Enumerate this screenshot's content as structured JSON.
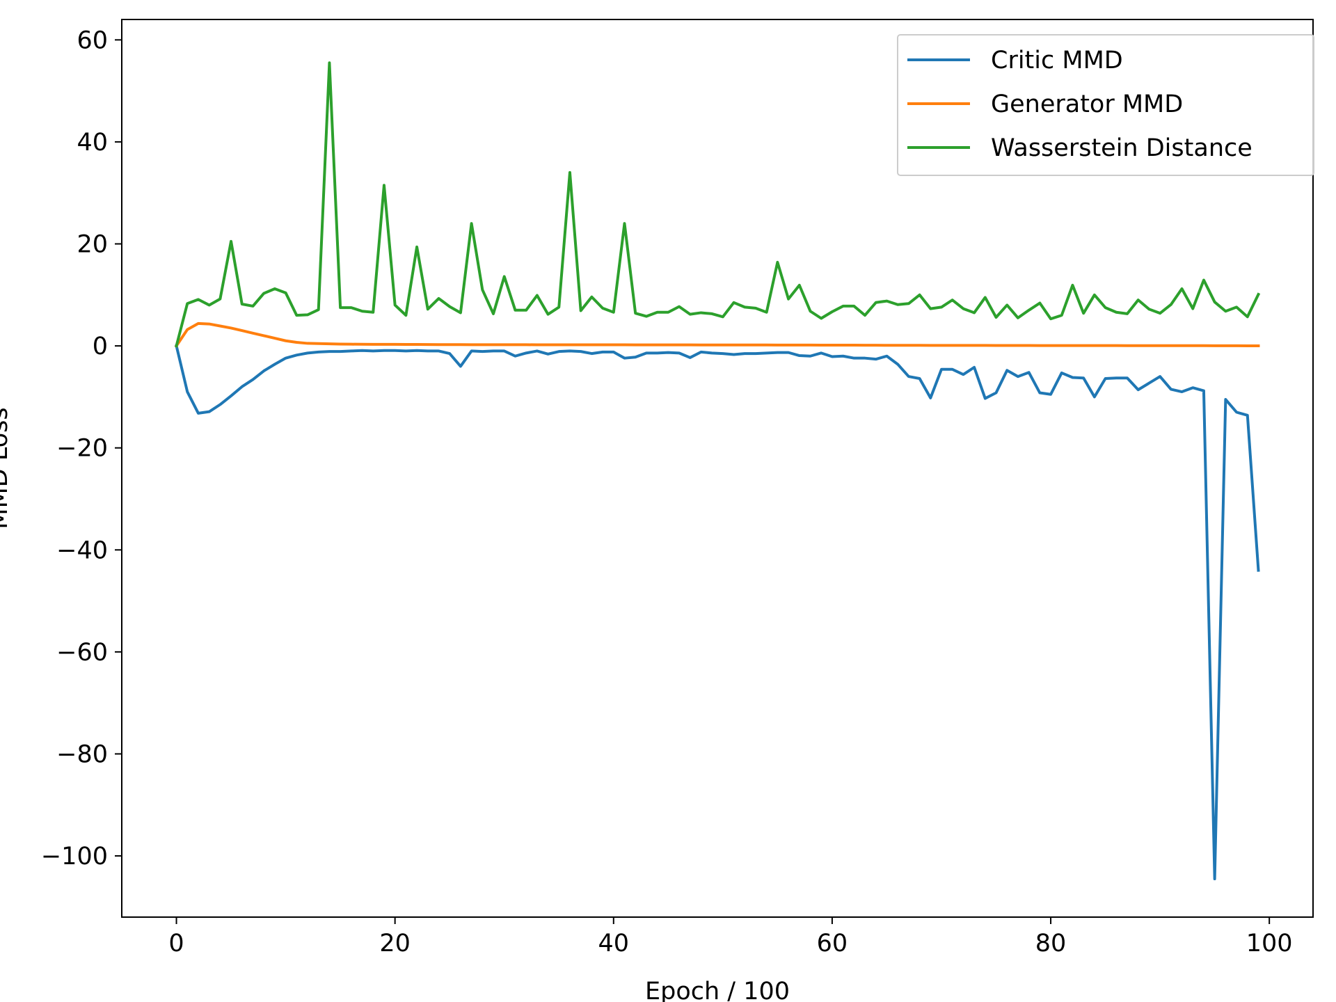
{
  "chart_data": {
    "type": "line",
    "title": "",
    "xlabel": "Epoch / 100",
    "ylabel": "MMD Loss",
    "xlim": [
      -5,
      104
    ],
    "ylim": [
      -112,
      64
    ],
    "xticks": [
      0,
      20,
      40,
      60,
      80,
      100
    ],
    "xtick_labels": [
      "0",
      "20",
      "40",
      "60",
      "80",
      "100"
    ],
    "yticks": [
      60,
      40,
      20,
      0,
      -20,
      -40,
      -60,
      -80,
      -100
    ],
    "ytick_labels": [
      "60",
      "40",
      "20",
      "0",
      "−20",
      "−40",
      "−60",
      "−80",
      "−100"
    ],
    "grid": false,
    "legend_position": "top-right",
    "x": [
      0,
      1,
      2,
      3,
      4,
      5,
      6,
      7,
      8,
      9,
      10,
      11,
      12,
      13,
      14,
      15,
      16,
      17,
      18,
      19,
      20,
      21,
      22,
      23,
      24,
      25,
      26,
      27,
      28,
      29,
      30,
      31,
      32,
      33,
      34,
      35,
      36,
      37,
      38,
      39,
      40,
      41,
      42,
      43,
      44,
      45,
      46,
      47,
      48,
      49,
      50,
      51,
      52,
      53,
      54,
      55,
      56,
      57,
      58,
      59,
      60,
      61,
      62,
      63,
      64,
      65,
      66,
      67,
      68,
      69,
      70,
      71,
      72,
      73,
      74,
      75,
      76,
      77,
      78,
      79,
      80,
      81,
      82,
      83,
      84,
      85,
      86,
      87,
      88,
      89,
      90,
      91,
      92,
      93,
      94,
      95,
      96,
      97,
      98,
      99
    ],
    "series": [
      {
        "name": "Critic MMD",
        "color": "#1f77b4",
        "values": [
          0,
          -9,
          -13.2,
          -12.9,
          -11.5,
          -9.8,
          -8,
          -6.6,
          -4.9,
          -3.6,
          -2.4,
          -1.8,
          -1.4,
          -1.2,
          -1.1,
          -1.1,
          -1,
          -0.9,
          -1,
          -0.9,
          -0.9,
          -1,
          -0.9,
          -1,
          -1,
          -1.5,
          -4,
          -1,
          -1.1,
          -1,
          -1,
          -2,
          -1.4,
          -1,
          -1.6,
          -1.1,
          -1,
          -1.1,
          -1.5,
          -1.2,
          -1.2,
          -2.4,
          -2.2,
          -1.4,
          -1.4,
          -1.3,
          -1.4,
          -2.3,
          -1.2,
          -1.4,
          -1.5,
          -1.7,
          -1.5,
          -1.5,
          -1.4,
          -1.3,
          -1.3,
          -1.9,
          -2,
          -1.4,
          -2.1,
          -2,
          -2.4,
          -2.4,
          -2.6,
          -2,
          -3.6,
          -6,
          -6.4,
          -10.2,
          -4.6,
          -4.6,
          -5.6,
          -4.2,
          -10.3,
          -9.2,
          -4.8,
          -6,
          -5.2,
          -9.2,
          -9.5,
          -5.3,
          -6.2,
          -6.3,
          -10,
          -6.4,
          -6.3,
          -6.3,
          -8.6,
          -7.3,
          -6,
          -8.5,
          -9,
          -8.2,
          -8.8,
          -104.5,
          -10.5,
          -13,
          -13.6,
          -44
        ]
      },
      {
        "name": "Generator MMD",
        "color": "#ff7f0e",
        "values": [
          0,
          3.2,
          4.4,
          4.3,
          3.9,
          3.5,
          3,
          2.5,
          2,
          1.5,
          1,
          0.7,
          0.5,
          0.45,
          0.4,
          0.35,
          0.33,
          0.32,
          0.3,
          0.3,
          0.3,
          0.29,
          0.28,
          0.27,
          0.26,
          0.25,
          0.25,
          0.24,
          0.24,
          0.24,
          0.23,
          0.23,
          0.23,
          0.22,
          0.22,
          0.22,
          0.22,
          0.22,
          0.21,
          0.21,
          0.21,
          0.21,
          0.2,
          0.2,
          0.2,
          0.2,
          0.2,
          0.2,
          0.19,
          0.19,
          0.19,
          0.19,
          0.18,
          0.18,
          0.18,
          0.17,
          0.17,
          0.16,
          0.16,
          0.15,
          0.15,
          0.14,
          0.14,
          0.13,
          0.13,
          0.12,
          0.12,
          0.11,
          0.11,
          0.1,
          0.1,
          0.1,
          0.09,
          0.09,
          0.09,
          0.08,
          0.08,
          0.08,
          0.08,
          0.07,
          0.07,
          0.07,
          0.07,
          0.06,
          0.06,
          0.06,
          0.06,
          0.05,
          0.05,
          0.05,
          0.05,
          0.04,
          0.04,
          0.04,
          0.04,
          0.03,
          0.03,
          0.03,
          0.02,
          0.02
        ]
      },
      {
        "name": "Wasserstein Distance",
        "color": "#2ca02c",
        "values": [
          0,
          8.3,
          9.1,
          8,
          9.2,
          20.5,
          8.2,
          7.8,
          10.3,
          11.2,
          10.4,
          6,
          6.1,
          7.1,
          55.5,
          7.5,
          7.5,
          6.8,
          6.6,
          31.5,
          8,
          6,
          19.4,
          7.2,
          9.3,
          7.7,
          6.5,
          24,
          11,
          6.3,
          13.6,
          7,
          7,
          9.9,
          6.2,
          7.6,
          34,
          6.9,
          9.6,
          7.4,
          6.6,
          24,
          6.4,
          5.8,
          6.6,
          6.6,
          7.7,
          6.2,
          6.5,
          6.3,
          5.7,
          8.5,
          7.6,
          7.4,
          6.6,
          16.4,
          9.2,
          11.9,
          6.8,
          5.4,
          6.7,
          7.8,
          7.8,
          6,
          8.5,
          8.8,
          8.1,
          8.3,
          10,
          7.3,
          7.6,
          9,
          7.3,
          6.5,
          9.5,
          5.6,
          8,
          5.5,
          7,
          8.4,
          5.3,
          6,
          11.9,
          6.4,
          10,
          7.5,
          6.6,
          6.3,
          9,
          7.2,
          6.4,
          8.1,
          11.2,
          7.3,
          12.9,
          8.6,
          6.8,
          7.6,
          5.7,
          10.1
        ]
      }
    ]
  }
}
